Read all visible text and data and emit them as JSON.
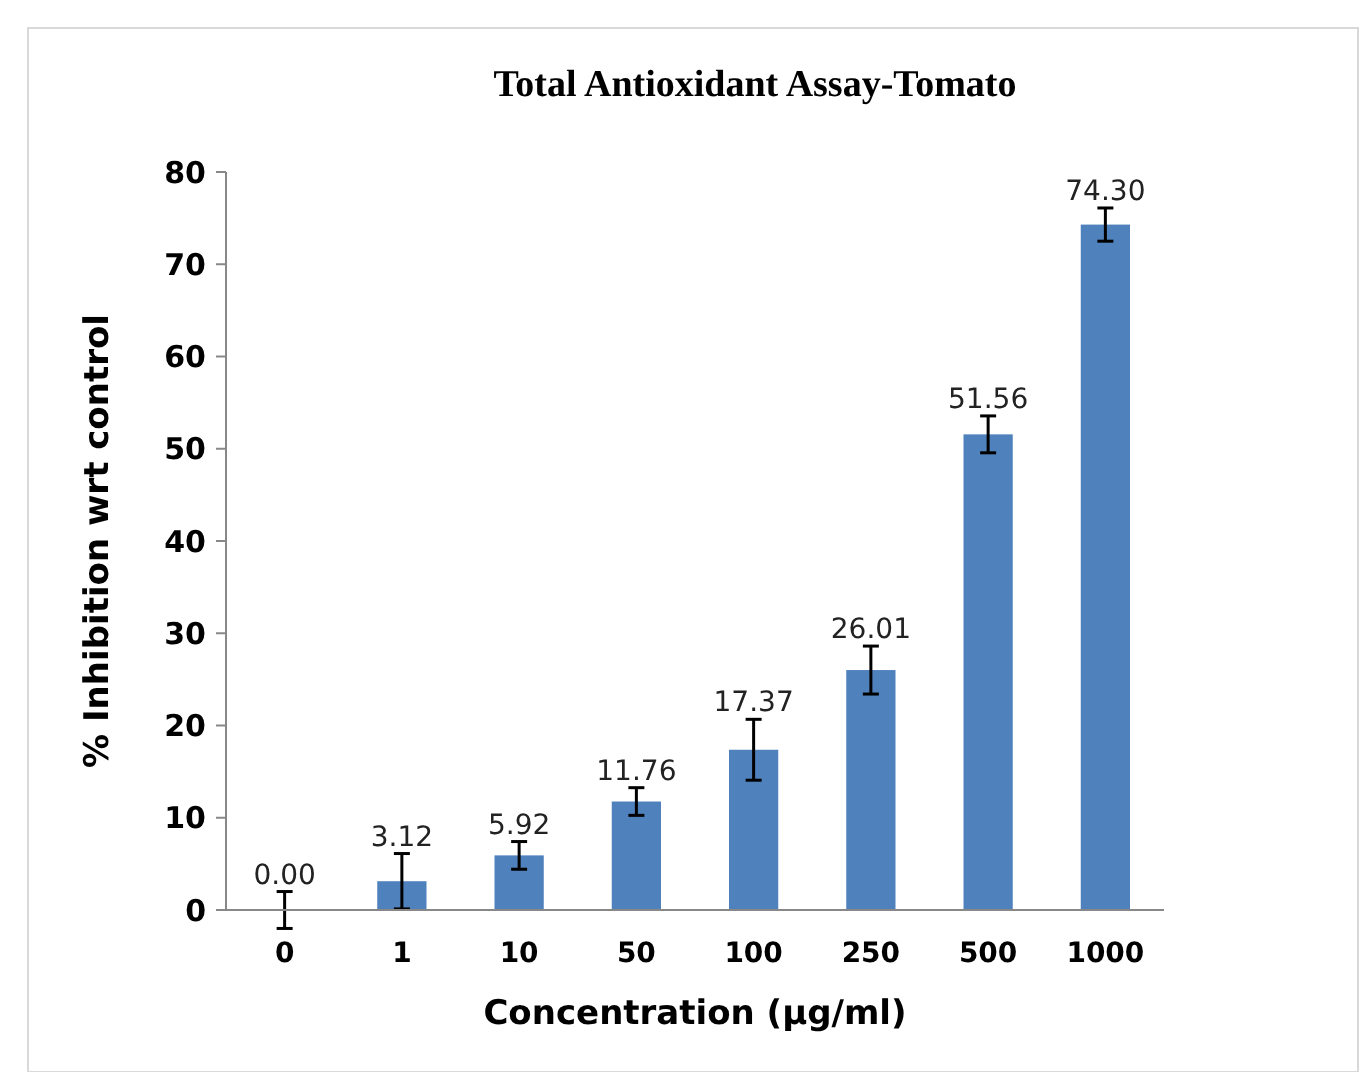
{
  "chart_data": {
    "type": "bar",
    "title": "Total Antioxidant Assay-Tomato",
    "xlabel": "Concentration (µg/ml)",
    "ylabel": "% Inhibition wrt control",
    "categories": [
      "0",
      "1",
      "10",
      "50",
      "100",
      "250",
      "500",
      "1000"
    ],
    "values": [
      0.0,
      3.12,
      5.92,
      11.76,
      17.37,
      26.01,
      51.56,
      74.3
    ],
    "value_labels": [
      "0.00",
      "3.12",
      "5.92",
      "11.76",
      "17.37",
      "26.01",
      "51.56",
      "74.30"
    ],
    "errors": [
      2,
      3,
      1.5,
      1.5,
      3.3,
      2.6,
      2,
      1.8
    ],
    "color": "#4f81bd",
    "ylim": [
      0,
      80
    ],
    "yticks": [
      0,
      10,
      20,
      30,
      40,
      50,
      60,
      70,
      80
    ],
    "grid": false
  }
}
